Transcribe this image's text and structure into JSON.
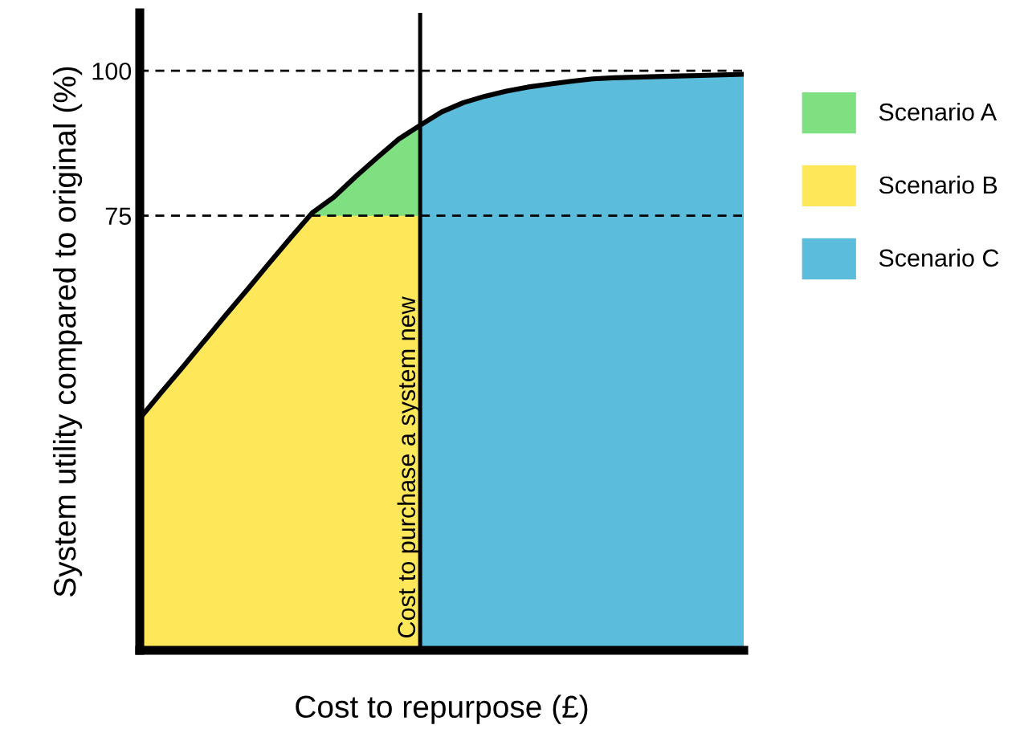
{
  "chart_data": {
    "type": "area",
    "xlabel": "Cost to repurpose (£)",
    "ylabel": "System utility compared to original (%)",
    "categories": [
      null,
      null,
      null,
      null,
      null,
      null,
      null,
      null,
      null,
      null,
      null,
      null,
      null,
      null,
      null,
      null,
      null,
      null,
      null,
      null,
      null,
      null,
      null,
      null,
      null,
      null,
      null,
      null,
      null
    ],
    "ylim": [
      0,
      110
    ],
    "yticks": [
      75,
      100
    ],
    "tick_labels": "y",
    "legend": "right",
    "series": [
      {
        "name": "Scenario A",
        "color": "#7ee081",
        "values": [
          null,
          null,
          null,
          null,
          null,
          null,
          null,
          null,
          75.5,
          78.2,
          81.7,
          85,
          88.2,
          90.6,
          null,
          null,
          null,
          null,
          null,
          null,
          null,
          null,
          null,
          null,
          null,
          null,
          null,
          null,
          null
        ]
      },
      {
        "name": "Scenario B",
        "color": "#ffe75a",
        "values": [
          40,
          44.5,
          48.9,
          53.4,
          57.9,
          62.3,
          66.8,
          71.2,
          75,
          75,
          75,
          75,
          75,
          75,
          null,
          null,
          null,
          null,
          null,
          null,
          null,
          null,
          null,
          null,
          null,
          null,
          null,
          null,
          null
        ]
      },
      {
        "name": "Scenario C",
        "color": "#5bbcdc",
        "values": [
          null,
          null,
          null,
          null,
          null,
          null,
          null,
          null,
          null,
          null,
          null,
          null,
          null,
          90.6,
          92.9,
          94.5,
          95.6,
          96.5,
          97.2,
          97.7,
          98.2,
          98.6,
          98.8,
          98.9,
          99,
          99.1,
          99.2,
          99.3,
          99.4
        ]
      },
      {
        "type": "line",
        "color": "#000000",
        "values": [
          40,
          44.5,
          48.9,
          53.4,
          57.9,
          62.3,
          66.8,
          71.2,
          75.5,
          78.2,
          81.7,
          85,
          88.2,
          90.6,
          92.9,
          94.5,
          95.6,
          96.5,
          97.2,
          97.7,
          98.2,
          98.6,
          98.8,
          98.9,
          99,
          99.1,
          99.2,
          99.3,
          99.4
        ]
      }
    ],
    "ref_lines": [
      {
        "axis": "y",
        "value": 75,
        "line_style": "dashed",
        "color": "#000000"
      },
      {
        "axis": "y",
        "value": 100,
        "line_style": "dashed",
        "color": "#000000"
      },
      {
        "axis": "x",
        "label": "Cost to purchase a system new",
        "line_style": "solid",
        "color": "#000000"
      }
    ]
  }
}
